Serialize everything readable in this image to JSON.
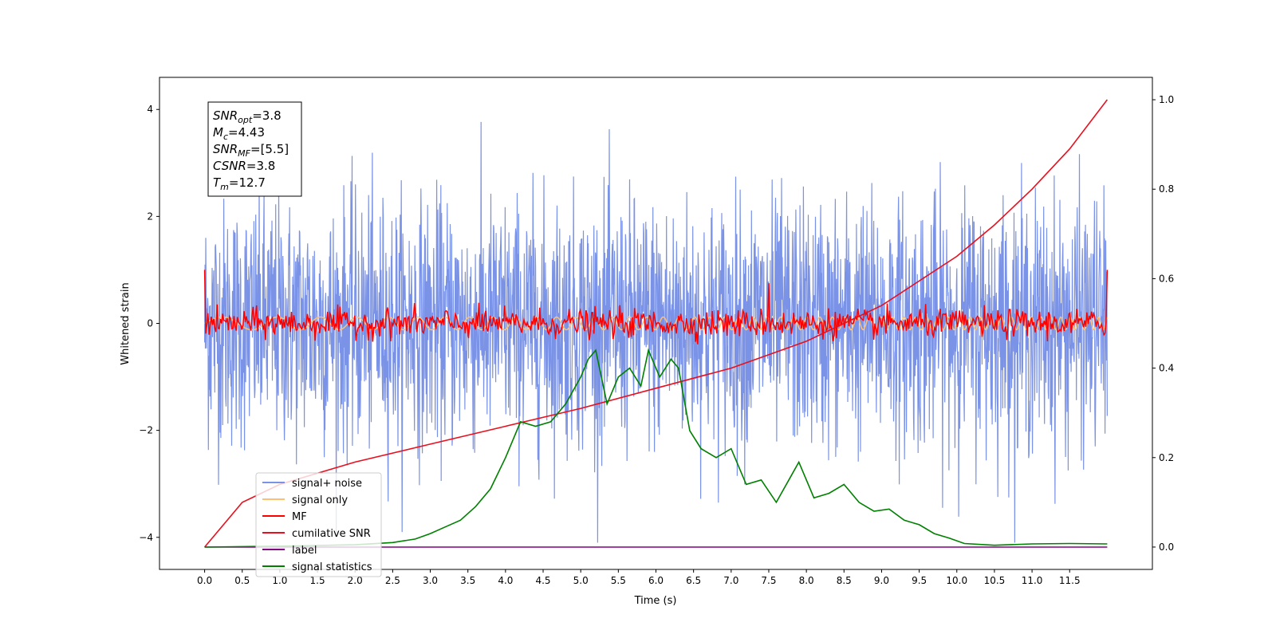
{
  "chart_data": {
    "type": "line",
    "xlabel": "Time (s)",
    "ylabel": "Whitened strain",
    "xlim": [
      -0.6,
      12.6
    ],
    "ylim": [
      -4.6,
      4.6
    ],
    "y2lim": [
      -0.05,
      1.05
    ],
    "x_ticks": [
      "0.0",
      "0.5",
      "1.0",
      "1.5",
      "2.0",
      "2.5",
      "3.0",
      "3.5",
      "4.0",
      "4.5",
      "5.0",
      "5.5",
      "6.0",
      "6.5",
      "7.0",
      "7.5",
      "8.0",
      "8.5",
      "9.0",
      "9.5",
      "10.0",
      "10.5",
      "11.0",
      "11.5"
    ],
    "y_ticks": [
      "4",
      "2",
      "0",
      "−2",
      "−4"
    ],
    "y2_ticks": [
      "1.0",
      "0.8",
      "0.6",
      "0.4",
      "0.2",
      "0.0"
    ],
    "annotation": [
      {
        "name": "SNR",
        "sub": "opt",
        "value": "=3.8"
      },
      {
        "name": "M",
        "sub": "c",
        "value": "=4.43"
      },
      {
        "name": "SNR",
        "sub": "MF",
        "value": "=[5.5]"
      },
      {
        "name": "CSNR",
        "sub": "",
        "value": "=3.8"
      },
      {
        "name": "T",
        "sub": "m",
        "value": "=12.7"
      }
    ],
    "legend_position": "lower-left",
    "series": [
      {
        "name": "signal+ noise",
        "axis": "left",
        "color": "#7b93e6",
        "description_range": [
          -4.1,
          4.2
        ]
      },
      {
        "name": "signal only",
        "axis": "left",
        "color": "#ffbf73",
        "amplitude": 0.12
      },
      {
        "name": "MF",
        "axis": "left",
        "color": "#ff0000",
        "amplitude": 0.25
      },
      {
        "name": "cumilative SNR",
        "axis": "right",
        "color": "#e8101e",
        "x": [
          0.0,
          0.5,
          1.0,
          1.5,
          2.0,
          3.0,
          4.0,
          5.0,
          6.0,
          7.0,
          8.0,
          9.0,
          10.0,
          10.5,
          11.0,
          11.5,
          12.0
        ],
        "y": [
          0.0,
          0.1,
          0.14,
          0.165,
          0.19,
          0.23,
          0.27,
          0.31,
          0.355,
          0.4,
          0.46,
          0.54,
          0.65,
          0.72,
          0.8,
          0.89,
          1.0
        ]
      },
      {
        "name": "label",
        "axis": "right",
        "color": "#800080",
        "x": [
          0.0,
          12.0
        ],
        "y": [
          0.0,
          0.0
        ]
      },
      {
        "name": "signal statistics",
        "axis": "right",
        "color": "#008000",
        "x": [
          0.0,
          1.0,
          2.0,
          2.5,
          2.8,
          3.0,
          3.2,
          3.4,
          3.6,
          3.8,
          4.0,
          4.2,
          4.4,
          4.6,
          4.8,
          5.0,
          5.1,
          5.2,
          5.35,
          5.5,
          5.65,
          5.8,
          5.9,
          6.05,
          6.2,
          6.3,
          6.45,
          6.6,
          6.8,
          7.0,
          7.2,
          7.4,
          7.6,
          7.8,
          7.9,
          8.1,
          8.3,
          8.5,
          8.7,
          8.9,
          9.1,
          9.3,
          9.5,
          9.7,
          9.9,
          10.1,
          10.5,
          11.0,
          11.5,
          12.0
        ],
        "y": [
          0.0,
          0.002,
          0.005,
          0.01,
          0.018,
          0.03,
          0.045,
          0.06,
          0.09,
          0.13,
          0.2,
          0.28,
          0.27,
          0.28,
          0.32,
          0.38,
          0.42,
          0.44,
          0.32,
          0.38,
          0.4,
          0.36,
          0.44,
          0.38,
          0.42,
          0.4,
          0.26,
          0.22,
          0.2,
          0.22,
          0.14,
          0.15,
          0.1,
          0.16,
          0.19,
          0.11,
          0.12,
          0.14,
          0.1,
          0.08,
          0.085,
          0.06,
          0.05,
          0.03,
          0.02,
          0.008,
          0.004,
          0.007,
          0.008,
          0.007
        ]
      }
    ]
  }
}
